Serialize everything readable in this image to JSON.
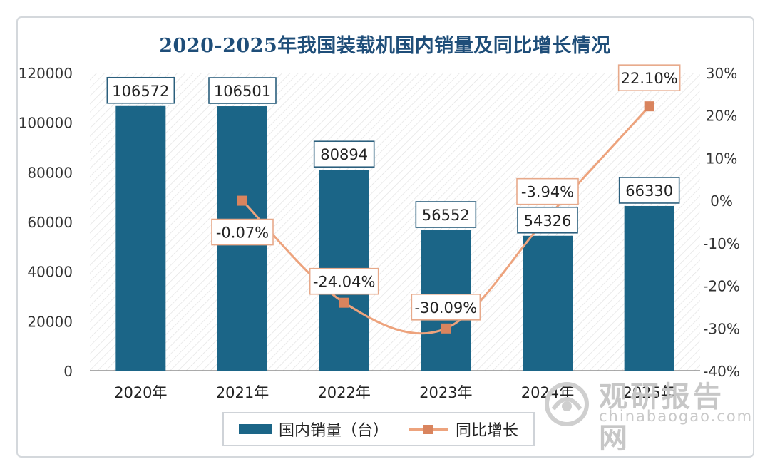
{
  "chart_data": {
    "type": "bar+line",
    "title": "2020-2025年我国装载机国内销量及同比增长情况",
    "categories": [
      "2020年",
      "2021年",
      "2022年",
      "2023年",
      "2024年",
      "2025年"
    ],
    "series": [
      {
        "name": "国内销量（台）",
        "type": "bar",
        "axis": "left",
        "color": "#1b6587",
        "values": [
          106572,
          106501,
          80894,
          56552,
          54326,
          66330
        ],
        "labels": [
          "106572",
          "106501",
          "80894",
          "56552",
          "54326",
          "66330"
        ]
      },
      {
        "name": "同比增长",
        "type": "line",
        "axis": "right",
        "color": "#eda37d",
        "marker_color": "#d9845e",
        "values": [
          null,
          -0.07,
          -24.04,
          -30.09,
          -3.94,
          22.1
        ],
        "labels": [
          "",
          "-0.07%",
          "-24.04%",
          "-30.09%",
          "-3.94%",
          "22.10%"
        ]
      }
    ],
    "y_left": {
      "min": 0,
      "max": 120000,
      "ticks": [
        "0",
        "20000",
        "40000",
        "60000",
        "80000",
        "100000",
        "120000"
      ]
    },
    "y_right": {
      "min": -40,
      "max": 30,
      "ticks": [
        "-40%",
        "-30%",
        "-20%",
        "-10%",
        "0%",
        "10%",
        "20%",
        "30%"
      ]
    },
    "legend_position": "bottom"
  },
  "watermark": {
    "name": "观研报告网",
    "url": "chinabaogao.com"
  }
}
